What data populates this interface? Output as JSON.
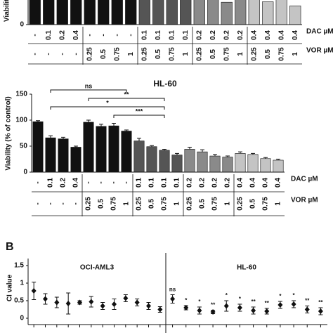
{
  "panel_label": "B",
  "chart_data": [
    {
      "type": "bar",
      "y_label": "Viability",
      "values": [
        100,
        88,
        82,
        72,
        99,
        96,
        94,
        90,
        80,
        74,
        70,
        60,
        72,
        66,
        43,
        58,
        60,
        44,
        52,
        36
      ],
      "colors": [
        "#111111",
        "#111111",
        "#111111",
        "#111111",
        "#111111",
        "#111111",
        "#111111",
        "#111111",
        "#555555",
        "#555555",
        "#555555",
        "#555555",
        "#8a8a8a",
        "#8a8a8a",
        "#8a8a8a",
        "#8a8a8a",
        "#c4c4c4",
        "#c4c4c4",
        "#c4c4c4",
        "#c4c4c4"
      ],
      "ylim": [
        0,
        150
      ],
      "yticks": [
        0
      ],
      "label_rows": [
        {
          "name": "DAC µM",
          "labels": [
            "-",
            "0.1",
            "0.2",
            "0.4",
            "-",
            "-",
            "-",
            "-",
            "0.1",
            "0.1",
            "0.1",
            "0.1",
            "0.2",
            "0.2",
            "0.2",
            "0.2",
            "0.4",
            "0.4",
            "0.4",
            "0.4"
          ]
        },
        {
          "name": "VOR µM",
          "labels": [
            "-",
            "-",
            "-",
            "-",
            "0.25",
            "0.5",
            "0.75",
            "1",
            "0.25",
            "0.5",
            "0.75",
            "1",
            "0.25",
            "0.5",
            "0.75",
            "1",
            "0.25",
            "0.5",
            "0.75",
            "1"
          ]
        }
      ]
    },
    {
      "type": "bar",
      "title": "HL-60",
      "y_label": "Viability (% of control)",
      "values": [
        97,
        66,
        64,
        48,
        96,
        88,
        89,
        79,
        60,
        49,
        42,
        33,
        44,
        39,
        31,
        29,
        36,
        34,
        26,
        23
      ],
      "errors": [
        2,
        4,
        3,
        2,
        4,
        4,
        5,
        2,
        5,
        2,
        2,
        3,
        4,
        4,
        3,
        2,
        3,
        2,
        2,
        2
      ],
      "colors": [
        "#111111",
        "#111111",
        "#111111",
        "#111111",
        "#111111",
        "#111111",
        "#111111",
        "#111111",
        "#555555",
        "#555555",
        "#555555",
        "#555555",
        "#8a8a8a",
        "#8a8a8a",
        "#8a8a8a",
        "#8a8a8a",
        "#c4c4c4",
        "#c4c4c4",
        "#c4c4c4",
        "#c4c4c4"
      ],
      "ylim": [
        0,
        150
      ],
      "yticks": [
        0,
        50,
        100,
        150
      ],
      "annotations": [
        {
          "text": "ns",
          "from": 1,
          "to": 7
        },
        {
          "text": "**",
          "from": 4,
          "to": 10
        },
        {
          "text": "*",
          "from": 1,
          "to": 10
        },
        {
          "text": "***",
          "from": 6,
          "to": 10
        }
      ],
      "label_rows": [
        {
          "name": "DAC µM",
          "labels": [
            "-",
            "0.1",
            "0.2",
            "0.4",
            "-",
            "-",
            "-",
            "-",
            "0.1",
            "0.1",
            "0.1",
            "0.1",
            "0.2",
            "0.2",
            "0.2",
            "0.2",
            "0.4",
            "0.4",
            "0.4",
            "0.4"
          ]
        },
        {
          "name": "VOR µM",
          "labels": [
            "-",
            "-",
            "-",
            "-",
            "0.25",
            "0.5",
            "0.75",
            "1",
            "0.25",
            "0.5",
            "0.75",
            "1",
            "0.25",
            "0.5",
            "0.75",
            "1",
            "0.25",
            "0.5",
            "0.75",
            "1"
          ]
        }
      ]
    },
    {
      "type": "errorbar",
      "y_label": "CI value",
      "ylim": [
        0,
        1.5
      ],
      "yticks": [
        0,
        0.5,
        1,
        1.5
      ],
      "series": [
        {
          "name": "OCI-AML3",
          "values": [
            0.78,
            0.55,
            0.45,
            0.42,
            0.45,
            0.47,
            0.35,
            0.4,
            0.57,
            0.45,
            0.35,
            0.25
          ],
          "errors": [
            0.25,
            0.15,
            0.15,
            0.3,
            0.05,
            0.15,
            0.1,
            0.15,
            0.1,
            0.1,
            0.1,
            0.08
          ]
        },
        {
          "name": "HL-60",
          "values": [
            0.55,
            0.3,
            0.22,
            0.18,
            0.35,
            0.3,
            0.22,
            0.2,
            0.38,
            0.4,
            0.25,
            0.2
          ],
          "errors": [
            0.12,
            0.06,
            0.1,
            0.05,
            0.15,
            0.1,
            0.1,
            0.08,
            0.1,
            0.1,
            0.1,
            0.1
          ],
          "labels": [
            "ns",
            "*",
            "*",
            "**",
            "*",
            "*",
            "**",
            "**",
            "*",
            "*",
            "**",
            "**"
          ]
        }
      ]
    }
  ]
}
